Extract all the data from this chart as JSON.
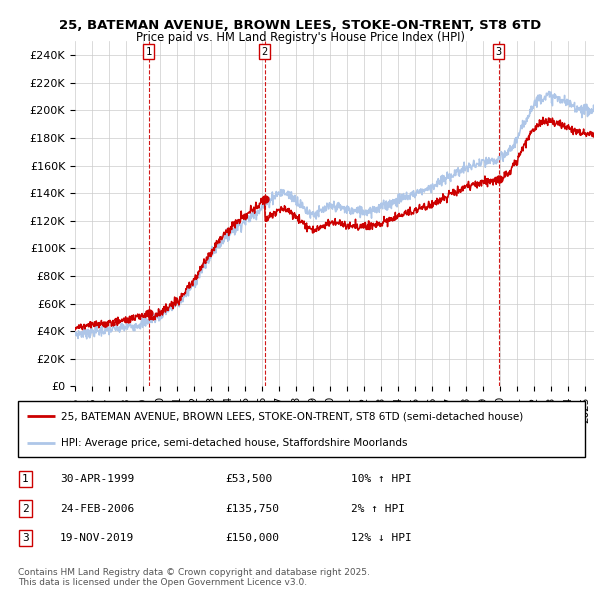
{
  "title": "25, BATEMAN AVENUE, BROWN LEES, STOKE-ON-TRENT, ST8 6TD",
  "subtitle": "Price paid vs. HM Land Registry's House Price Index (HPI)",
  "hpi_color": "#aec6e8",
  "price_color": "#cc0000",
  "background_color": "#ffffff",
  "grid_color": "#cccccc",
  "ylim": [
    0,
    250000
  ],
  "xlim_start": 1995.0,
  "xlim_end": 2025.5,
  "yticks": [
    0,
    20000,
    40000,
    60000,
    80000,
    100000,
    120000,
    140000,
    160000,
    180000,
    200000,
    220000,
    240000
  ],
  "ytick_labels": [
    "£0",
    "£20K",
    "£40K",
    "£60K",
    "£80K",
    "£100K",
    "£120K",
    "£140K",
    "£160K",
    "£180K",
    "£200K",
    "£220K",
    "£240K"
  ],
  "sales": [
    {
      "date_year": 1999.33,
      "price": 53500,
      "label": "1",
      "date_str": "30-APR-1999",
      "price_str": "£53,500",
      "hpi_str": "10% ↑ HPI"
    },
    {
      "date_year": 2006.15,
      "price": 135750,
      "label": "2",
      "date_str": "24-FEB-2006",
      "price_str": "£135,750",
      "hpi_str": "2% ↑ HPI"
    },
    {
      "date_year": 2019.89,
      "price": 150000,
      "label": "3",
      "date_str": "19-NOV-2019",
      "price_str": "£150,000",
      "hpi_str": "12% ↓ HPI"
    }
  ],
  "legend_items": [
    {
      "label": "25, BATEMAN AVENUE, BROWN LEES, STOKE-ON-TRENT, ST8 6TD (semi-detached house)",
      "color": "#cc0000"
    },
    {
      "label": "HPI: Average price, semi-detached house, Staffordshire Moorlands",
      "color": "#aec6e8"
    }
  ],
  "footnote": "Contains HM Land Registry data © Crown copyright and database right 2025.\nThis data is licensed under the Open Government Licence v3.0.",
  "table_rows": [
    [
      "1",
      "30-APR-1999",
      "£53,500",
      "10% ↑ HPI"
    ],
    [
      "2",
      "24-FEB-2006",
      "£135,750",
      "2% ↑ HPI"
    ],
    [
      "3",
      "19-NOV-2019",
      "£150,000",
      "12% ↓ HPI"
    ]
  ],
  "hpi_anchors": [
    [
      1995.0,
      38000
    ],
    [
      1996.0,
      39500
    ],
    [
      1997.0,
      41000
    ],
    [
      1998.0,
      43000
    ],
    [
      1999.0,
      46000
    ],
    [
      2000.0,
      52000
    ],
    [
      2001.0,
      60000
    ],
    [
      2002.0,
      75000
    ],
    [
      2003.0,
      95000
    ],
    [
      2004.0,
      110000
    ],
    [
      2005.0,
      120000
    ],
    [
      2006.0,
      130000
    ],
    [
      2007.0,
      140000
    ],
    [
      2008.0,
      135000
    ],
    [
      2009.0,
      125000
    ],
    [
      2010.0,
      130000
    ],
    [
      2011.0,
      128000
    ],
    [
      2012.0,
      127000
    ],
    [
      2013.0,
      130000
    ],
    [
      2014.0,
      135000
    ],
    [
      2015.0,
      140000
    ],
    [
      2016.0,
      145000
    ],
    [
      2017.0,
      152000
    ],
    [
      2018.0,
      158000
    ],
    [
      2019.0,
      162000
    ],
    [
      2020.0,
      165000
    ],
    [
      2021.0,
      180000
    ],
    [
      2022.0,
      205000
    ],
    [
      2023.0,
      210000
    ],
    [
      2024.0,
      205000
    ],
    [
      2025.5,
      200000
    ]
  ]
}
